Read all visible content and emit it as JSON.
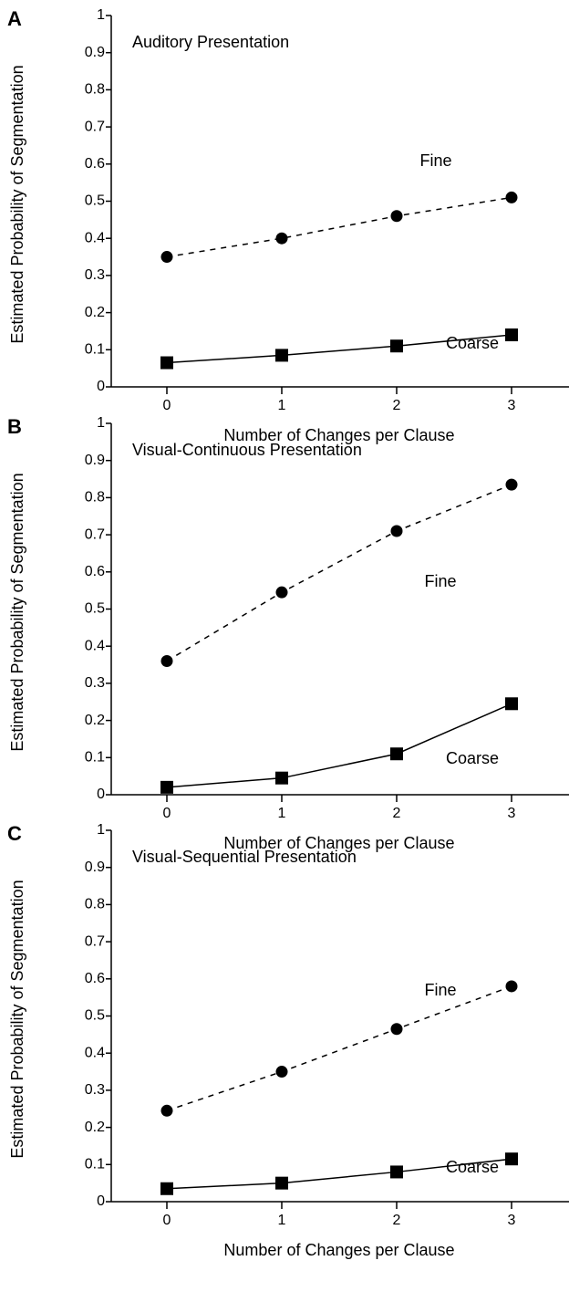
{
  "chart_data": [
    {
      "type": "line",
      "panel": "A",
      "title": "Auditory Presentation",
      "x_label": "Number of Changes per Clause",
      "y_label": "Estimated Probability of Segmentation",
      "x": [
        0,
        1,
        2,
        3
      ],
      "xlim": [
        -0.5,
        3.5
      ],
      "xticks": [
        0,
        1,
        2,
        3
      ],
      "ylim": [
        0,
        1
      ],
      "yticks": [
        0,
        0.1,
        0.2,
        0.3,
        0.4,
        0.5,
        0.6,
        0.7,
        0.8,
        0.9,
        1
      ],
      "series": [
        {
          "name": "Fine",
          "color": "#000000",
          "line_style": "dashed",
          "marker": "circle",
          "values": [
            0.35,
            0.4,
            0.46,
            0.51
          ]
        },
        {
          "name": "Coarse",
          "color": "#000000",
          "line_style": "solid",
          "marker": "square",
          "values": [
            0.065,
            0.085,
            0.11,
            0.14
          ]
        }
      ]
    },
    {
      "type": "line",
      "panel": "B",
      "title": "Visual-Continuous Presentation",
      "x_label": "Number of Changes per Clause",
      "y_label": "Estimated Probability of Segmentation",
      "x": [
        0,
        1,
        2,
        3
      ],
      "xlim": [
        -0.5,
        3.5
      ],
      "xticks": [
        0,
        1,
        2,
        3
      ],
      "ylim": [
        0,
        1
      ],
      "yticks": [
        0,
        0.1,
        0.2,
        0.3,
        0.4,
        0.5,
        0.6,
        0.7,
        0.8,
        0.9,
        1
      ],
      "series": [
        {
          "name": "Fine",
          "color": "#000000",
          "line_style": "dashed",
          "marker": "circle",
          "values": [
            0.36,
            0.545,
            0.71,
            0.835
          ]
        },
        {
          "name": "Coarse",
          "color": "#000000",
          "line_style": "solid",
          "marker": "square",
          "values": [
            0.02,
            0.045,
            0.11,
            0.245
          ]
        }
      ]
    },
    {
      "type": "line",
      "panel": "C",
      "title": "Visual-Sequential Presentation",
      "x_label": "Number of Changes per Clause",
      "y_label": "Estimated Probability of Segmentation",
      "x": [
        0,
        1,
        2,
        3
      ],
      "xlim": [
        -0.5,
        3.5
      ],
      "xticks": [
        0,
        1,
        2,
        3
      ],
      "ylim": [
        0,
        1
      ],
      "yticks": [
        0,
        0.1,
        0.2,
        0.3,
        0.4,
        0.5,
        0.6,
        0.7,
        0.8,
        0.9,
        1
      ],
      "series": [
        {
          "name": "Fine",
          "color": "#000000",
          "line_style": "dashed",
          "marker": "circle",
          "values": [
            0.245,
            0.35,
            0.465,
            0.58
          ]
        },
        {
          "name": "Coarse",
          "color": "#000000",
          "line_style": "solid",
          "marker": "square",
          "values": [
            0.035,
            0.05,
            0.08,
            0.115
          ]
        }
      ]
    }
  ]
}
